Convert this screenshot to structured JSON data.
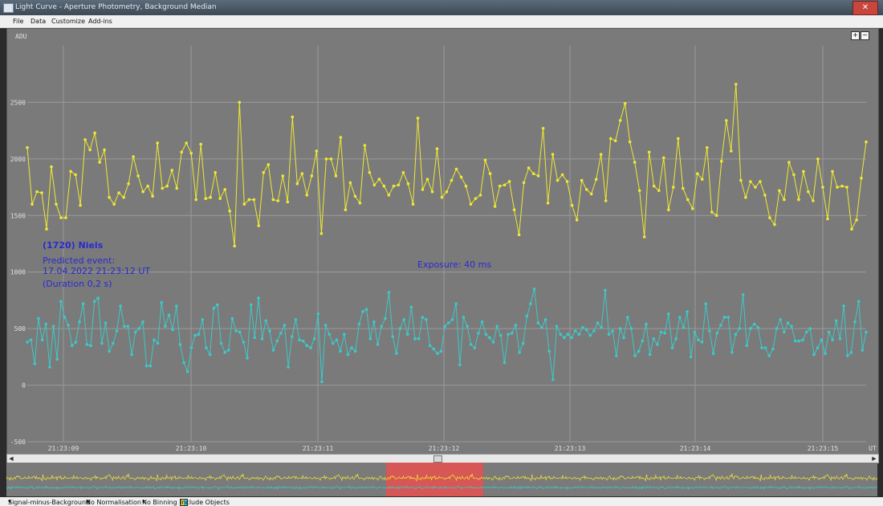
{
  "window": {
    "title": "Light Curve - Aperture Photometry, Background Median",
    "close_glyph": "✕"
  },
  "menu": [
    "File",
    "Data",
    "Customize",
    "Add-ins"
  ],
  "zoom": {
    "in": "+",
    "out": "−"
  },
  "annotations": {
    "object": "(1720) Niels",
    "predicted": "Predicted event:",
    "datetime": "17.04.2022    21:23:12 UT",
    "duration": "(Duration 0,2 s)",
    "exposure": "Exposure:  40 ms"
  },
  "status": {
    "signal": "Signal-minus-Background",
    "norm": "No Normalisation",
    "binning": "No Binning",
    "objects": "Include Objects"
  },
  "colors": {
    "target": "#f0e832",
    "comparison": "#3ec8c8",
    "background": "#7a7a7a",
    "grid": "#9a9a9a",
    "selection": "#e85050"
  },
  "chart_data": {
    "type": "line",
    "ylabel": "ADU",
    "xlabel": "UT",
    "ylim": [
      -500,
      3000
    ],
    "yticks": [
      2500,
      2000,
      1500,
      1000,
      500,
      0,
      -500
    ],
    "xticks": [
      "21:23:09",
      "21:23:10",
      "21:23:11",
      "21:23:12",
      "21:23:13",
      "21:23:14",
      "21:23:15"
    ],
    "grid": true,
    "series": [
      {
        "values": [
          2100,
          1600,
          1710,
          1700,
          1380,
          1930,
          1600,
          1480,
          1480,
          1890,
          1860,
          1590,
          2170,
          2080,
          2230,
          1970,
          2080,
          1660,
          1600,
          1700,
          1660,
          1780,
          2020,
          1850,
          1710,
          1760,
          1670,
          2140,
          1740,
          1760,
          1900,
          1740,
          2060,
          2140,
          2050,
          1640,
          2130,
          1650,
          1660,
          1880,
          1650,
          1730,
          1540,
          1230,
          2500,
          1600,
          1640,
          1640,
          1410,
          1880,
          1950,
          1640,
          1630,
          1850,
          1620,
          2370,
          1780,
          1870,
          1680,
          1850,
          2070,
          1340,
          2000,
          2000,
          1850,
          2190,
          1550,
          1790,
          1670,
          1610,
          2120,
          1880,
          1770,
          1820,
          1760,
          1680,
          1760,
          1770,
          1880,
          1780,
          1600,
          2360,
          1730,
          1820,
          1710,
          2090,
          1660,
          1710,
          1810,
          1910,
          1840,
          1760,
          1600,
          1650,
          1680,
          1990,
          1870,
          1580,
          1760,
          1770,
          1800,
          1550,
          1330,
          1790,
          1920,
          1870,
          1850,
          2270,
          1610,
          2040,
          1810,
          1860,
          1800,
          1590,
          1460,
          1810,
          1730,
          1690,
          1820,
          2040,
          1630,
          2180,
          2160,
          2340,
          2490,
          2150,
          1970,
          1720,
          1310,
          2060,
          1760,
          1720,
          2010,
          1550,
          1750,
          2180,
          1740,
          1640,
          1560,
          1870,
          1820,
          2100,
          1530,
          1500,
          1980,
          2340,
          2070,
          2660,
          1810,
          1660,
          1800,
          1750,
          1800,
          1680,
          1480,
          1420,
          1720,
          1640,
          1970,
          1860,
          1640,
          1890,
          1710,
          1630,
          2000,
          1750,
          1470,
          1890,
          1750,
          1760,
          1750,
          1380,
          1460,
          1830,
          2150
        ]
      },
      {
        "values": [
          380,
          400,
          190,
          590,
          400,
          540,
          160,
          520,
          230,
          740,
          600,
          530,
          350,
          380,
          560,
          720,
          360,
          350,
          740,
          770,
          370,
          550,
          300,
          370,
          480,
          700,
          520,
          520,
          270,
          470,
          500,
          560,
          170,
          170,
          400,
          370,
          730,
          520,
          620,
          490,
          700,
          360,
          200,
          120,
          330,
          440,
          450,
          580,
          330,
          270,
          680,
          710,
          370,
          290,
          310,
          590,
          480,
          470,
          380,
          240,
          710,
          420,
          770,
          410,
          570,
          480,
          310,
          390,
          460,
          530,
          160,
          430,
          580,
          400,
          390,
          350,
          330,
          410,
          630,
          30,
          530,
          450,
          370,
          400,
          300,
          450,
          270,
          330,
          300,
          540,
          650,
          670,
          410,
          560,
          360,
          520,
          590,
          820,
          430,
          280,
          500,
          580,
          450,
          690,
          410,
          410,
          600,
          580,
          350,
          320,
          280,
          300,
          520,
          550,
          580,
          720,
          180,
          600,
          520,
          360,
          330,
          460,
          560,
          450,
          420,
          380,
          520,
          440,
          200,
          450,
          460,
          530,
          290,
          370,
          610,
          720,
          850,
          550,
          510,
          580,
          300,
          50,
          520,
          450,
          420,
          450,
          420,
          480,
          450,
          510,
          490,
          440,
          480,
          550,
          510,
          840,
          450,
          480,
          260,
          500,
          420,
          600,
          500,
          260,
          300,
          390,
          540,
          270,
          410,
          360,
          470,
          460,
          630,
          330,
          410,
          600,
          510,
          650,
          250,
          470,
          400,
          380,
          720,
          480,
          280,
          460,
          530,
          600,
          600,
          290,
          450,
          500,
          800,
          350,
          500,
          540,
          510,
          330,
          330,
          260,
          320,
          500,
          580,
          470,
          550,
          520,
          390,
          390,
          400,
          470,
          500,
          270,
          330,
          400,
          280,
          470,
          400,
          570,
          410,
          700,
          260,
          290,
          560,
          740,
          310,
          470
        ]
      }
    ]
  }
}
